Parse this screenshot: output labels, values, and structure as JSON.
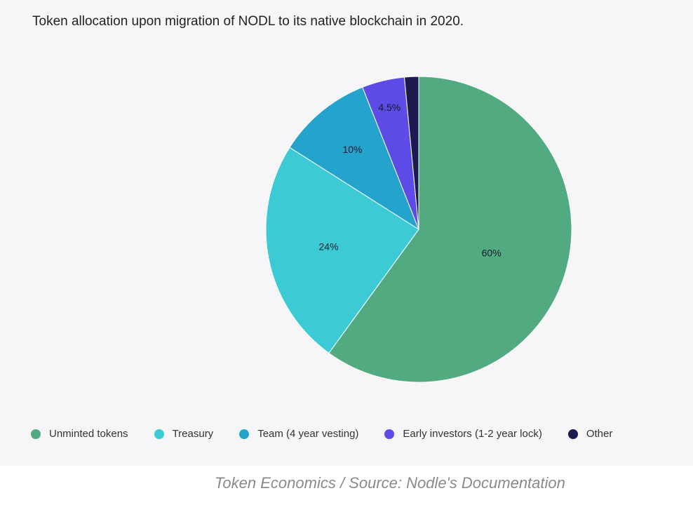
{
  "chart_data": {
    "type": "pie",
    "title": "Token allocation upon migration of NODL to its native blockchain in 2020.",
    "slices": [
      {
        "label": "Unminted tokens",
        "value": 60,
        "display": "60%",
        "color": "#52ab80"
      },
      {
        "label": "Treasury",
        "value": 24,
        "display": "24%",
        "color": "#3ccbd4"
      },
      {
        "label": "Team (4 year vesting)",
        "value": 10,
        "display": "10%",
        "color": "#24a4cd"
      },
      {
        "label": "Early investors (1-2 year lock)",
        "value": 4.5,
        "display": "4.5%",
        "color": "#5d4be6"
      },
      {
        "label": "Other",
        "value": 1.5,
        "display": "",
        "color": "#1d1a50"
      }
    ],
    "legend_position": "bottom"
  },
  "caption": "Token Economics / Source: Nodle's Documentation"
}
